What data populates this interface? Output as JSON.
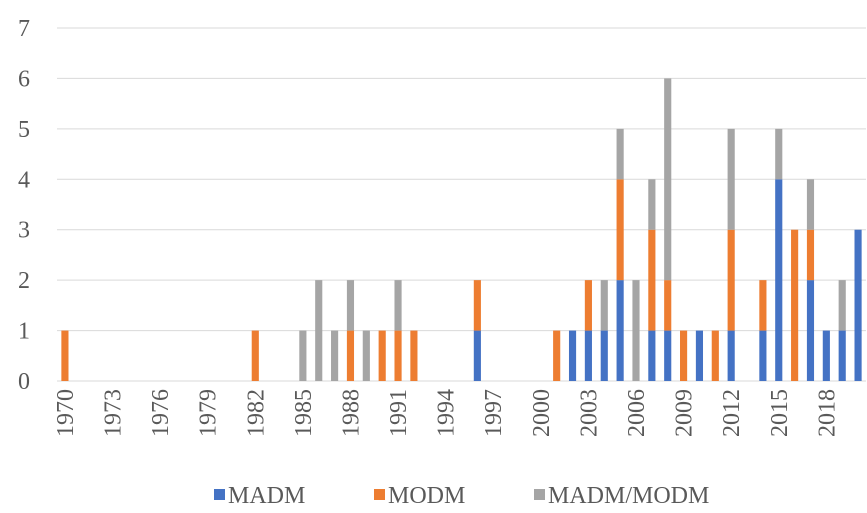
{
  "chart_data": {
    "type": "stacked_bar",
    "categories": [
      "1970",
      null,
      null,
      "1973",
      null,
      null,
      "1976",
      null,
      null,
      "1979",
      null,
      null,
      "1982",
      null,
      null,
      "1985",
      null,
      null,
      "1988",
      null,
      null,
      "1991",
      null,
      null,
      "1994",
      null,
      null,
      "1997",
      null,
      null,
      "2000",
      null,
      null,
      "2003",
      null,
      null,
      "2006",
      null,
      null,
      "2009",
      null,
      null,
      "2012",
      null,
      null,
      "2015",
      null,
      null,
      "2018",
      null,
      null
    ],
    "series": [
      {
        "name": "MADM",
        "color": "#4472c4",
        "values": [
          0,
          0,
          0,
          0,
          0,
          0,
          0,
          0,
          0,
          0,
          0,
          0,
          0,
          0,
          0,
          0,
          0,
          0,
          0,
          0,
          0,
          0,
          0,
          0,
          0,
          0,
          1,
          0,
          0,
          0,
          0,
          0,
          1,
          1,
          1,
          2,
          0,
          1,
          1,
          0,
          1,
          0,
          1,
          0,
          1,
          4,
          0,
          2,
          1,
          1,
          3
        ]
      },
      {
        "name": "MODM",
        "color": "#ed7d31",
        "values": [
          1,
          0,
          0,
          0,
          0,
          0,
          0,
          0,
          0,
          0,
          0,
          0,
          1,
          0,
          0,
          0,
          0,
          0,
          1,
          0,
          1,
          1,
          1,
          0,
          0,
          0,
          1,
          0,
          0,
          0,
          0,
          1,
          0,
          1,
          0,
          2,
          0,
          2,
          1,
          1,
          0,
          1,
          2,
          0,
          1,
          0,
          3,
          1,
          0,
          0,
          0
        ]
      },
      {
        "name": "MADM/MODM",
        "color": "#a5a5a5",
        "values": [
          0,
          0,
          0,
          0,
          0,
          0,
          0,
          0,
          0,
          0,
          0,
          0,
          0,
          0,
          0,
          1,
          2,
          1,
          1,
          1,
          0,
          1,
          0,
          0,
          0,
          0,
          0,
          0,
          0,
          0,
          0,
          0,
          0,
          0,
          1,
          1,
          2,
          1,
          4,
          0,
          0,
          0,
          2,
          0,
          0,
          1,
          0,
          1,
          0,
          1,
          0
        ]
      }
    ],
    "ylim": [
      0,
      7
    ],
    "yticks": [
      0,
      1,
      2,
      3,
      4,
      5,
      6,
      7
    ],
    "grid": true,
    "legend": "bottom"
  }
}
